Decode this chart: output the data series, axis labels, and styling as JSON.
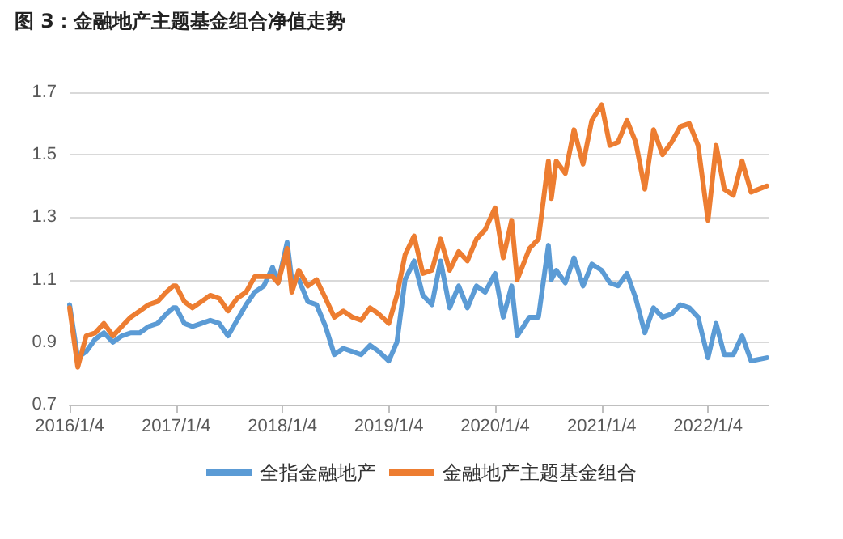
{
  "chart_data": {
    "type": "line",
    "title": "图 3：金融地产主题基金组合净值走势",
    "x": [
      "2016-01-04",
      "2016-02-01",
      "2016-03-01",
      "2016-04-01",
      "2016-05-01",
      "2016-06-01",
      "2016-07-01",
      "2016-08-01",
      "2016-09-01",
      "2016-10-01",
      "2016-11-01",
      "2016-12-01",
      "2016-12-25",
      "2017-01-04",
      "2017-02-01",
      "2017-03-01",
      "2017-04-01",
      "2017-05-01",
      "2017-06-01",
      "2017-07-01",
      "2017-08-01",
      "2017-09-01",
      "2017-10-01",
      "2017-11-01",
      "2017-12-01",
      "2017-12-20",
      "2018-01-20",
      "2018-02-05",
      "2018-03-01",
      "2018-04-01",
      "2018-05-01",
      "2018-06-01",
      "2018-07-01",
      "2018-08-01",
      "2018-09-01",
      "2018-10-01",
      "2018-11-01",
      "2018-12-01",
      "2019-01-04",
      "2019-02-01",
      "2019-03-01",
      "2019-04-01",
      "2019-05-01",
      "2019-06-01",
      "2019-07-01",
      "2019-08-01",
      "2019-09-01",
      "2019-10-01",
      "2019-11-01",
      "2019-12-01",
      "2020-01-04",
      "2020-02-01",
      "2020-03-01",
      "2020-03-20",
      "2020-05-01",
      "2020-06-01",
      "2020-07-05",
      "2020-07-15",
      "2020-08-01",
      "2020-09-01",
      "2020-10-01",
      "2020-11-01",
      "2020-12-01",
      "2021-01-04",
      "2021-02-01",
      "2021-03-01",
      "2021-04-01",
      "2021-05-01",
      "2021-06-01",
      "2021-07-01",
      "2021-08-01",
      "2021-09-01",
      "2021-10-01",
      "2021-11-01",
      "2021-12-01",
      "2022-01-04",
      "2022-02-01",
      "2022-03-01",
      "2022-04-01",
      "2022-05-01",
      "2022-06-01",
      "2022-07-25"
    ],
    "series": [
      {
        "name": "全指金融地产",
        "color": "#5b9bd5",
        "values": [
          1.02,
          0.85,
          0.87,
          0.91,
          0.93,
          0.9,
          0.92,
          0.93,
          0.93,
          0.95,
          0.96,
          0.99,
          1.01,
          1.01,
          0.96,
          0.95,
          0.96,
          0.97,
          0.96,
          0.92,
          0.97,
          1.02,
          1.06,
          1.08,
          1.14,
          1.09,
          1.22,
          1.1,
          1.1,
          1.03,
          1.02,
          0.95,
          0.86,
          0.88,
          0.87,
          0.86,
          0.89,
          0.87,
          0.84,
          0.9,
          1.1,
          1.16,
          1.05,
          1.02,
          1.16,
          1.01,
          1.08,
          1.01,
          1.08,
          1.06,
          1.12,
          0.98,
          1.08,
          0.92,
          0.98,
          0.98,
          1.21,
          1.1,
          1.13,
          1.09,
          1.17,
          1.08,
          1.15,
          1.13,
          1.09,
          1.08,
          1.12,
          1.04,
          0.93,
          1.01,
          0.98,
          0.99,
          1.02,
          1.01,
          0.98,
          0.85,
          0.96,
          0.86,
          0.86,
          0.92,
          0.84,
          0.85
        ]
      },
      {
        "name": "金融地产主题基金组合",
        "color": "#ed7d31",
        "values": [
          1.01,
          0.82,
          0.92,
          0.93,
          0.96,
          0.92,
          0.95,
          0.98,
          1.0,
          1.02,
          1.03,
          1.06,
          1.08,
          1.08,
          1.03,
          1.01,
          1.03,
          1.05,
          1.04,
          1.0,
          1.04,
          1.06,
          1.11,
          1.11,
          1.11,
          1.09,
          1.2,
          1.06,
          1.13,
          1.08,
          1.1,
          1.04,
          0.98,
          1.0,
          0.98,
          0.97,
          1.01,
          0.99,
          0.96,
          1.05,
          1.18,
          1.24,
          1.12,
          1.13,
          1.23,
          1.13,
          1.19,
          1.16,
          1.23,
          1.26,
          1.33,
          1.17,
          1.29,
          1.1,
          1.2,
          1.23,
          1.48,
          1.36,
          1.48,
          1.44,
          1.58,
          1.47,
          1.61,
          1.66,
          1.53,
          1.54,
          1.61,
          1.54,
          1.39,
          1.58,
          1.5,
          1.54,
          1.59,
          1.6,
          1.53,
          1.29,
          1.53,
          1.39,
          1.37,
          1.48,
          1.38,
          1.4
        ]
      }
    ],
    "xlim": [
      "2016-01-04",
      "2022-07-31"
    ],
    "xticks": [
      {
        "value": "2016-01-04",
        "label": "2016/1/4"
      },
      {
        "value": "2017-01-04",
        "label": "2017/1/4"
      },
      {
        "value": "2018-01-04",
        "label": "2018/1/4"
      },
      {
        "value": "2019-01-04",
        "label": "2019/1/4"
      },
      {
        "value": "2020-01-04",
        "label": "2020/1/4"
      },
      {
        "value": "2021-01-04",
        "label": "2021/1/4"
      },
      {
        "value": "2022-01-04",
        "label": "2022/1/4"
      }
    ],
    "ylim": [
      0.7,
      1.7
    ],
    "yticks": [
      0.7,
      0.9,
      1.1,
      1.3,
      1.5,
      1.7
    ],
    "grid": "y",
    "legend": "bottom",
    "marker": "none",
    "line_style": "solid"
  }
}
